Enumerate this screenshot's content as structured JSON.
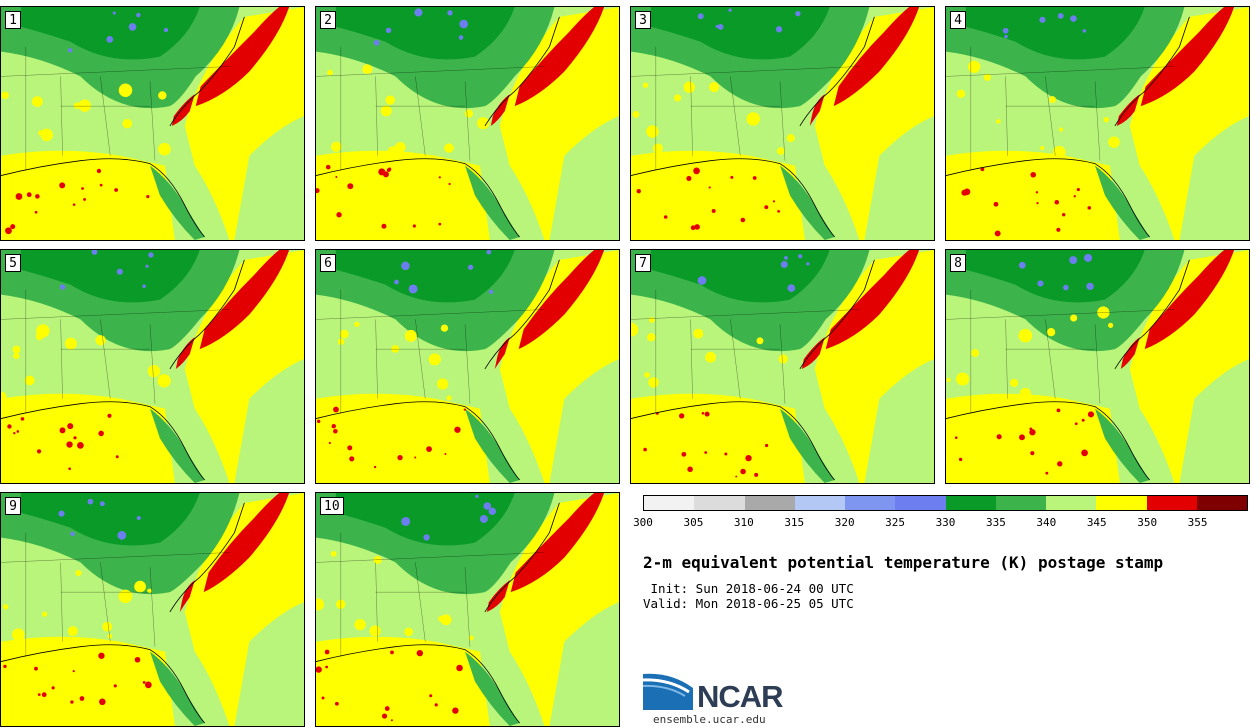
{
  "panels": [
    {
      "label": "1"
    },
    {
      "label": "2"
    },
    {
      "label": "3"
    },
    {
      "label": "4"
    },
    {
      "label": "5"
    },
    {
      "label": "6"
    },
    {
      "label": "7"
    },
    {
      "label": "8"
    },
    {
      "label": "9"
    },
    {
      "label": "10"
    }
  ],
  "colorbar": {
    "colors": [
      "#f2f2f2",
      "#dcdcdc",
      "#a9a9a9",
      "#b4c8f5",
      "#7f96f0",
      "#6d7ff0",
      "#0a9a28",
      "#3cb44b",
      "#b9f57a",
      "#ffff00",
      "#e30000",
      "#7f0000"
    ],
    "ticks": [
      "300",
      "305",
      "310",
      "315",
      "320",
      "325",
      "330",
      "335",
      "340",
      "345",
      "350",
      "355"
    ]
  },
  "title": "2-m equivalent potential temperature (K) postage stamp",
  "init": " Init: Sun 2018-06-24 00 UTC",
  "valid": "Valid: Mon 2018-06-25 05 UTC",
  "logo": {
    "text": "NCAR",
    "url": "ensemble.ucar.edu"
  }
}
